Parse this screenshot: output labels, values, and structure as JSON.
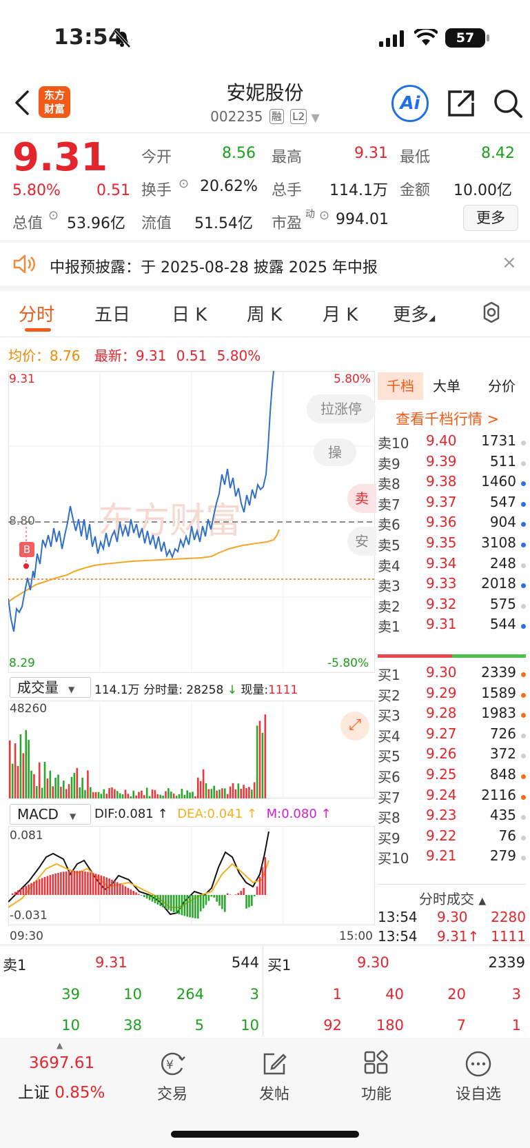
{
  "status_bar": {
    "time": "13:54",
    "battery": "57"
  },
  "header": {
    "logo_text_1": "东方",
    "logo_text_2": "财富",
    "title": "安妮股份",
    "code": "002235",
    "tag_rong": "融",
    "tag_l2": "L2",
    "ai_label": "Ai"
  },
  "quote": {
    "price": "9.31",
    "change_pct": "5.80%",
    "change": "0.51",
    "open_label": "今开",
    "open": "8.56",
    "high_label": "最高",
    "high": "9.31",
    "low_label": "最低",
    "low": "8.42",
    "turnover_label": "换手",
    "turnover": "20.62%",
    "volume_label": "总手",
    "volume": "114.1万",
    "amount_label": "金额",
    "amount": "10.00亿",
    "mcap_label": "总值",
    "mcap": "53.96亿",
    "float_label": "流值",
    "float_val": "51.54亿",
    "pe_label": "市盈",
    "pe_sup": "动",
    "pe": "994.01",
    "more_button": "更多"
  },
  "notice": {
    "text": "中报预披露：于 2025-08-28 披露 2025 年中报"
  },
  "tabs": [
    "分时",
    "五日",
    "日 K",
    "周 K",
    "月 K",
    "更多"
  ],
  "chart_info": {
    "avg_label": "均价：",
    "avg": "8.76",
    "latest_label": "最新：",
    "latest": "9.31",
    "change": "0.51",
    "change_pct": "5.80%"
  },
  "chart": {
    "y_top": "9.31",
    "y_mid": "8.80",
    "y_bottom": "8.29",
    "pct_top": "5.80%",
    "pct_bottom": "-5.80%",
    "btn_limit": "拉涨停",
    "btn_op": "操",
    "btn_sell": "卖",
    "btn_safe": "安",
    "marker_b": "B",
    "watermark": "东方财富",
    "time_start": "09:30",
    "time_end": "15:00"
  },
  "volume_bar": {
    "selector": "成交量",
    "total": "114.1万",
    "tick_label": "分时量: 28258",
    "now_label": "现量:",
    "now": "1111",
    "max": "48260"
  },
  "macd_bar": {
    "selector": "MACD",
    "dif": "DIF:0.081 ↑",
    "dea": "DEA:0.041 ↑",
    "m": "M:0.080 ↑",
    "max": "0.081",
    "min": "-0.031"
  },
  "orderbook": {
    "tabs": [
      "千档",
      "大单",
      "分价"
    ],
    "link": "查看千档行情 >",
    "asks": [
      {
        "label": "卖10",
        "price": "9.40",
        "vol": "1731",
        "dot": "#cfcfcf"
      },
      {
        "label": "卖9",
        "price": "9.39",
        "vol": "511",
        "dot": "#cfcfcf"
      },
      {
        "label": "卖8",
        "price": "9.38",
        "vol": "1460",
        "dot": "#2f6fe0"
      },
      {
        "label": "卖7",
        "price": "9.37",
        "vol": "547",
        "dot": "#2f6fe0"
      },
      {
        "label": "卖6",
        "price": "9.36",
        "vol": "904",
        "dot": "#2f6fe0"
      },
      {
        "label": "卖5",
        "price": "9.35",
        "vol": "3108",
        "dot": "#2f6fe0"
      },
      {
        "label": "卖4",
        "price": "9.34",
        "vol": "248",
        "dot": "#cfcfcf"
      },
      {
        "label": "卖3",
        "price": "9.33",
        "vol": "2018",
        "dot": "#2f6fe0"
      },
      {
        "label": "卖2",
        "price": "9.32",
        "vol": "575",
        "dot": "#cfcfcf"
      },
      {
        "label": "卖1",
        "price": "9.31",
        "vol": "544",
        "dot": "#2f6fe0"
      }
    ],
    "bids": [
      {
        "label": "买1",
        "price": "9.30",
        "vol": "2339",
        "dot": "#f07020"
      },
      {
        "label": "买2",
        "price": "9.29",
        "vol": "1589",
        "dot": "#f07020"
      },
      {
        "label": "买3",
        "price": "9.28",
        "vol": "1983",
        "dot": "#f07020"
      },
      {
        "label": "买4",
        "price": "9.27",
        "vol": "726",
        "dot": "#cfcfcf"
      },
      {
        "label": "买5",
        "price": "9.26",
        "vol": "372",
        "dot": "#cfcfcf"
      },
      {
        "label": "买6",
        "price": "9.25",
        "vol": "848",
        "dot": "#f07020"
      },
      {
        "label": "买7",
        "price": "9.24",
        "vol": "2116",
        "dot": "#f07020"
      },
      {
        "label": "买8",
        "price": "9.23",
        "vol": "435",
        "dot": "#cfcfcf"
      },
      {
        "label": "买9",
        "price": "9.22",
        "vol": "76",
        "dot": "#cfcfcf"
      },
      {
        "label": "买10",
        "price": "9.21",
        "vol": "279",
        "dot": "#cfcfcf"
      }
    ],
    "trades_title": "分时成交",
    "trades": [
      {
        "time": "13:54",
        "price": "9.30",
        "vol": "2280"
      },
      {
        "time": "13:54",
        "price": "9.31↑",
        "vol": "1111"
      }
    ]
  },
  "level1": {
    "sell_label": "卖1",
    "sell_price": "9.31",
    "sell_vol": "544",
    "buy_label": "买1",
    "buy_price": "9.30",
    "buy_vol": "2339",
    "sell_queue": [
      [
        "39",
        "10",
        "264",
        "3"
      ],
      [
        "10",
        "38",
        "5",
        "10"
      ]
    ],
    "buy_queue": [
      [
        "1",
        "40",
        "20",
        "3"
      ],
      [
        "92",
        "180",
        "7",
        "1"
      ]
    ]
  },
  "bottom_nav": {
    "index_value": "3697.61",
    "index_name": "上证",
    "index_pct": "0.85%",
    "items": [
      "交易",
      "发帖",
      "功能",
      "设自选"
    ]
  }
}
